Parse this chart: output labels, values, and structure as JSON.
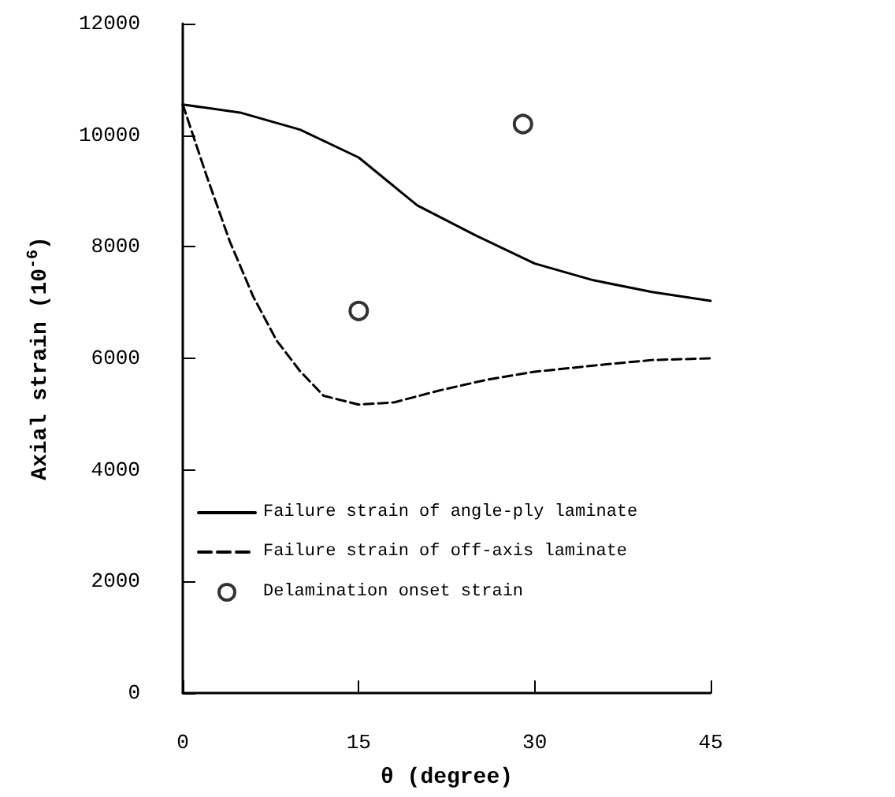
{
  "chart_data": {
    "type": "line",
    "xlabel": "θ (degree)",
    "ylabel": "Axial strain (10$^{-6}$)",
    "xlim": [
      0,
      45
    ],
    "xticks": [
      0,
      15,
      30,
      45
    ],
    "ylim": [
      0,
      12000
    ],
    "yticks": [
      0,
      2000,
      4000,
      6000,
      8000,
      10000,
      12000
    ],
    "grid": false,
    "legend": "bottom left",
    "series": [
      {
        "name": "Failure strain of angle-ply laminate",
        "color": "#000000",
        "line_style": "solid",
        "marker": "none",
        "x": [
          0,
          5,
          10,
          15,
          20,
          25,
          30,
          35,
          40,
          45
        ],
        "values": [
          10550,
          10400,
          10100,
          9600,
          8740,
          8200,
          7700,
          7400,
          7190,
          7030
        ]
      },
      {
        "name": "Failure strain of off-axis laminate",
        "color": "#000000",
        "line_style": "dashed",
        "marker": "none",
        "x": [
          0,
          2,
          4,
          6,
          8,
          10,
          12,
          15,
          18,
          22,
          26,
          30,
          35,
          40,
          45
        ],
        "values": [
          10550,
          9290,
          8100,
          7110,
          6320,
          5770,
          5330,
          5170,
          5210,
          5430,
          5620,
          5760,
          5870,
          5970,
          6000
        ]
      },
      {
        "name": "Delamination onset strain",
        "type": "scatter",
        "color": "#000000",
        "marker": "circle",
        "x": [
          15,
          29
        ],
        "values": [
          6850,
          10200
        ]
      }
    ]
  }
}
